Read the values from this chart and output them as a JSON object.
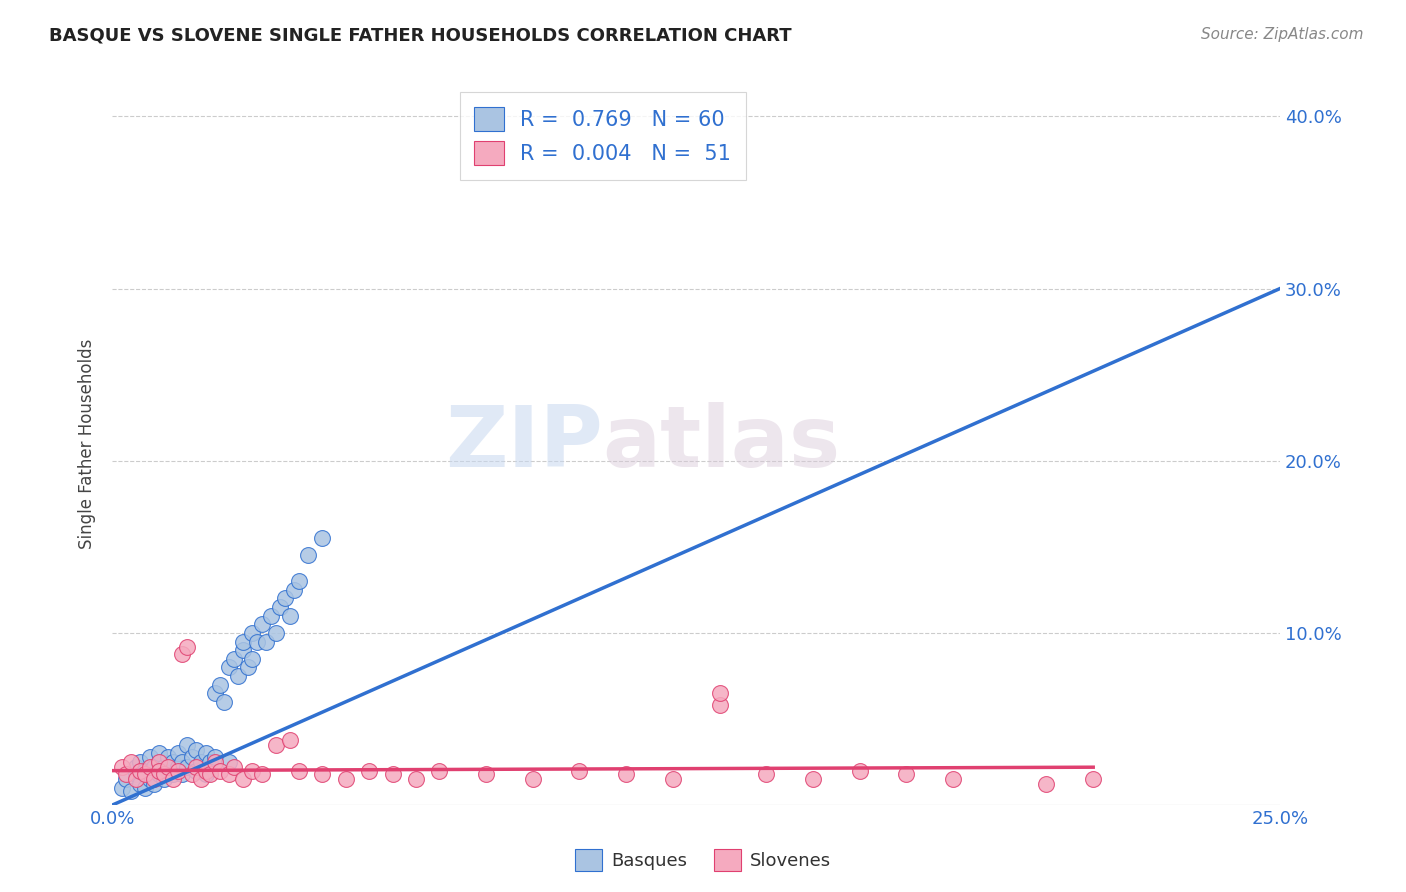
{
  "title": "BASQUE VS SLOVENE SINGLE FATHER HOUSEHOLDS CORRELATION CHART",
  "source": "Source: ZipAtlas.com",
  "ylabel_label": "Single Father Households",
  "xmin": 0.0,
  "xmax": 0.25,
  "ymin": 0.0,
  "ymax": 0.42,
  "xticks": [
    0.0,
    0.05,
    0.1,
    0.15,
    0.2,
    0.25
  ],
  "xtick_labels": [
    "0.0%",
    "",
    "",
    "",
    "",
    "25.0%"
  ],
  "ytick_positions": [
    0.0,
    0.1,
    0.2,
    0.3,
    0.4
  ],
  "ytick_labels": [
    "",
    "10.0%",
    "20.0%",
    "30.0%",
    "40.0%"
  ],
  "grid_color": "#cccccc",
  "background_color": "#ffffff",
  "basque_color": "#aac4e2",
  "slovene_color": "#f5aabf",
  "basque_line_color": "#3070d0",
  "slovene_line_color": "#e04070",
  "R_basque": 0.769,
  "N_basque": 60,
  "R_slovene": 0.004,
  "N_slovene": 51,
  "watermark_zip": "ZIP",
  "watermark_atlas": "atlas",
  "basque_line_x": [
    0.0,
    0.25
  ],
  "basque_line_y": [
    0.0,
    0.3
  ],
  "slovene_line_x": [
    0.0,
    0.21
  ],
  "slovene_line_y": [
    0.02,
    0.022
  ],
  "basque_x": [
    0.002,
    0.003,
    0.004,
    0.005,
    0.005,
    0.006,
    0.006,
    0.007,
    0.007,
    0.008,
    0.008,
    0.009,
    0.009,
    0.01,
    0.01,
    0.01,
    0.011,
    0.011,
    0.012,
    0.012,
    0.013,
    0.013,
    0.014,
    0.014,
    0.015,
    0.015,
    0.016,
    0.016,
    0.017,
    0.018,
    0.018,
    0.019,
    0.02,
    0.02,
    0.021,
    0.022,
    0.022,
    0.023,
    0.024,
    0.025,
    0.025,
    0.026,
    0.027,
    0.028,
    0.028,
    0.029,
    0.03,
    0.03,
    0.031,
    0.032,
    0.033,
    0.034,
    0.035,
    0.036,
    0.037,
    0.038,
    0.039,
    0.04,
    0.042,
    0.045
  ],
  "basque_y": [
    0.01,
    0.015,
    0.008,
    0.018,
    0.022,
    0.012,
    0.025,
    0.01,
    0.02,
    0.015,
    0.028,
    0.012,
    0.022,
    0.018,
    0.025,
    0.03,
    0.015,
    0.022,
    0.02,
    0.028,
    0.018,
    0.025,
    0.022,
    0.03,
    0.018,
    0.025,
    0.022,
    0.035,
    0.028,
    0.02,
    0.032,
    0.025,
    0.018,
    0.03,
    0.025,
    0.028,
    0.065,
    0.07,
    0.06,
    0.025,
    0.08,
    0.085,
    0.075,
    0.09,
    0.095,
    0.08,
    0.1,
    0.085,
    0.095,
    0.105,
    0.095,
    0.11,
    0.1,
    0.115,
    0.12,
    0.11,
    0.125,
    0.13,
    0.145,
    0.155
  ],
  "slovene_x": [
    0.002,
    0.003,
    0.004,
    0.005,
    0.006,
    0.007,
    0.008,
    0.009,
    0.01,
    0.01,
    0.011,
    0.012,
    0.013,
    0.014,
    0.015,
    0.016,
    0.017,
    0.018,
    0.019,
    0.02,
    0.021,
    0.022,
    0.023,
    0.025,
    0.026,
    0.028,
    0.03,
    0.032,
    0.035,
    0.038,
    0.04,
    0.045,
    0.05,
    0.055,
    0.06,
    0.065,
    0.07,
    0.08,
    0.09,
    0.1,
    0.11,
    0.12,
    0.13,
    0.14,
    0.15,
    0.16,
    0.17,
    0.18,
    0.2,
    0.21,
    0.13
  ],
  "slovene_y": [
    0.022,
    0.018,
    0.025,
    0.015,
    0.02,
    0.018,
    0.022,
    0.015,
    0.025,
    0.02,
    0.018,
    0.022,
    0.015,
    0.02,
    0.088,
    0.092,
    0.018,
    0.022,
    0.015,
    0.02,
    0.018,
    0.025,
    0.02,
    0.018,
    0.022,
    0.015,
    0.02,
    0.018,
    0.035,
    0.038,
    0.02,
    0.018,
    0.015,
    0.02,
    0.018,
    0.015,
    0.02,
    0.018,
    0.015,
    0.02,
    0.018,
    0.015,
    0.058,
    0.018,
    0.015,
    0.02,
    0.018,
    0.015,
    0.012,
    0.015,
    0.065
  ]
}
